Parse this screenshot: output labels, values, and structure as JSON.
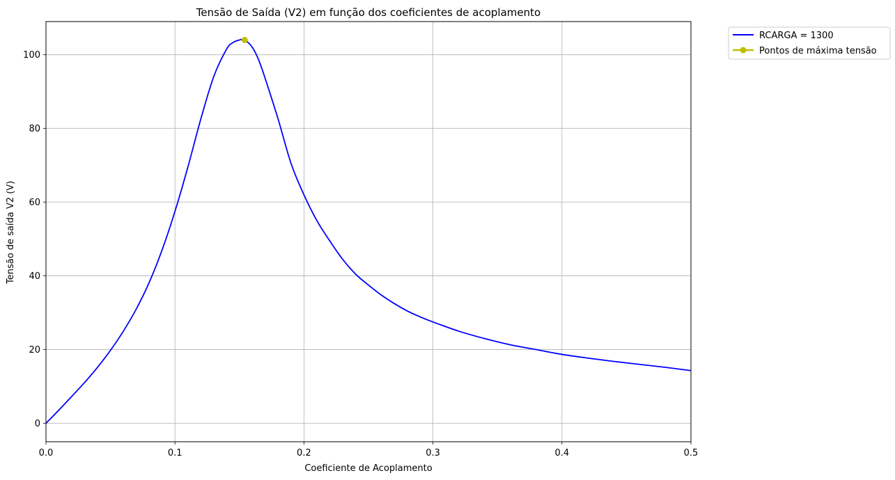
{
  "chart_data": {
    "type": "line",
    "title": "Tensão de Saída (V2) em função dos coeficientes de acoplamento",
    "xlabel": "Coeficiente de Acoplamento",
    "ylabel": "Tensão de saída V2 (V)",
    "xlim": [
      0,
      0.5
    ],
    "ylim": [
      -5,
      109
    ],
    "xticks": [
      0,
      0.1,
      0.2,
      0.3,
      0.4,
      0.5
    ],
    "xtick_labels": [
      "0.0",
      "0.1",
      "0.2",
      "0.3",
      "0.4",
      "0.5"
    ],
    "yticks": [
      0,
      20,
      40,
      60,
      80,
      100
    ],
    "ytick_labels": [
      "0",
      "20",
      "40",
      "60",
      "80",
      "100"
    ],
    "grid": true,
    "legend_position": "outside-top-right",
    "series": [
      {
        "name": "RCARGA  = 1300",
        "color": "#0000ff",
        "marker": "none",
        "x": [
          0,
          0.01,
          0.02,
          0.03,
          0.04,
          0.05,
          0.06,
          0.07,
          0.08,
          0.09,
          0.1,
          0.11,
          0.12,
          0.13,
          0.14,
          0.145,
          0.15,
          0.154,
          0.16,
          0.165,
          0.17,
          0.18,
          0.19,
          0.2,
          0.21,
          0.22,
          0.23,
          0.24,
          0.25,
          0.26,
          0.27,
          0.28,
          0.29,
          0.3,
          0.32,
          0.34,
          0.36,
          0.38,
          0.4,
          0.42,
          0.44,
          0.46,
          0.48,
          0.5
        ],
        "y": [
          0,
          3.6,
          7.3,
          11.1,
          15.2,
          19.8,
          25.0,
          31.0,
          38.2,
          47.0,
          57.5,
          69.5,
          82.5,
          94.0,
          101.5,
          103.3,
          104.0,
          104.0,
          102.0,
          98.5,
          93.5,
          82.5,
          70.5,
          62.0,
          55.0,
          49.5,
          44.5,
          40.5,
          37.5,
          34.8,
          32.5,
          30.5,
          28.9,
          27.5,
          25.0,
          23.0,
          21.3,
          20.0,
          18.7,
          17.7,
          16.8,
          16.0,
          15.2,
          14.3
        ]
      },
      {
        "name": "Pontos de máxima tensão",
        "color": "#bfbf00",
        "marker": "circle",
        "x": [
          0.154
        ],
        "y": [
          104.0
        ]
      }
    ]
  }
}
